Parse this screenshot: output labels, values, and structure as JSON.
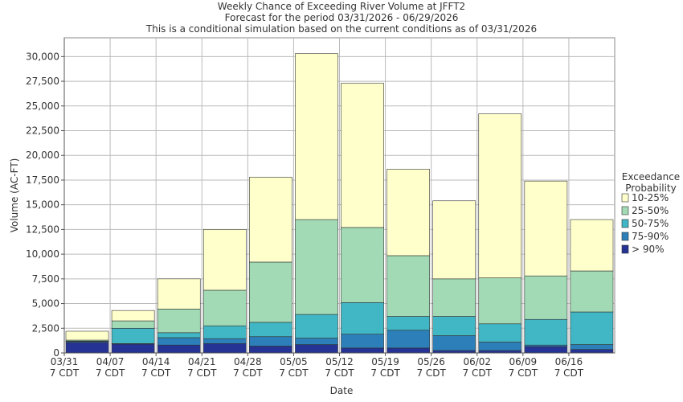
{
  "chart_data": {
    "type": "stacked_bar",
    "title": "Weekly Chance of Exceeding River Volume at JFFT2",
    "subtitle": [
      "Forecast for the period 03/31/2026 - 06/29/2026",
      "This is a conditional simulation based on the current conditions as of 03/31/2026"
    ],
    "x_label": "Date",
    "y_label": "Volume (AC-FT)",
    "legend_title": "Exceedance\nProbability",
    "legend": "right",
    "grid": true,
    "categories": [
      "03/31\n7 CDT",
      "04/07\n7 CDT",
      "04/14\n7 CDT",
      "04/21\n7 CDT",
      "04/28\n7 CDT",
      "05/05\n7 CDT",
      "05/12\n7 CDT",
      "05/19\n7 CDT",
      "05/26\n7 CDT",
      "06/02\n7 CDT",
      "06/09\n7 CDT",
      "06/16\n7 CDT"
    ],
    "series": [
      {
        "name": "> 90%",
        "color": "#253494",
        "values": [
          1050,
          900,
          800,
          950,
          700,
          850,
          500,
          500,
          250,
          250,
          650,
          350
        ]
      },
      {
        "name": "75-90%",
        "color": "#2c7fb8",
        "values": [
          100,
          50,
          750,
          500,
          950,
          650,
          1400,
          1800,
          1500,
          850,
          150,
          500
        ]
      },
      {
        "name": "50-75%",
        "color": "#41b6c4",
        "values": [
          50,
          1550,
          500,
          1300,
          1450,
          2400,
          3200,
          1400,
          1950,
          1850,
          2600,
          3300
        ]
      },
      {
        "name": "25-50%",
        "color": "#a1dab4",
        "values": [
          100,
          750,
          2400,
          3600,
          6100,
          9600,
          7600,
          6150,
          3800,
          4650,
          4400,
          4150
        ]
      },
      {
        "name": "10-25%",
        "color": "#ffffcc",
        "values": [
          900,
          1050,
          3050,
          6150,
          8600,
          16800,
          14600,
          8750,
          7900,
          16600,
          9600,
          5200
        ]
      }
    ],
    "ylim": [
      0,
      31900
    ],
    "yticks": [
      0,
      {
        "value": 2500,
        "label": "2,500"
      },
      {
        "value": 5000,
        "label": "5,000"
      },
      {
        "value": 7500,
        "label": "7,500"
      },
      {
        "value": 10000,
        "label": "10,000"
      },
      {
        "value": 12500,
        "label": "12,500"
      },
      {
        "value": 15000,
        "label": "15,000"
      },
      {
        "value": 17500,
        "label": "17,500"
      },
      {
        "value": 20000,
        "label": "20,000"
      },
      {
        "value": 22500,
        "label": "22,500"
      },
      {
        "value": 25000,
        "label": "25,000"
      },
      {
        "value": 27500,
        "label": "27,500"
      },
      {
        "value": 30000,
        "label": "30,000"
      }
    ]
  }
}
